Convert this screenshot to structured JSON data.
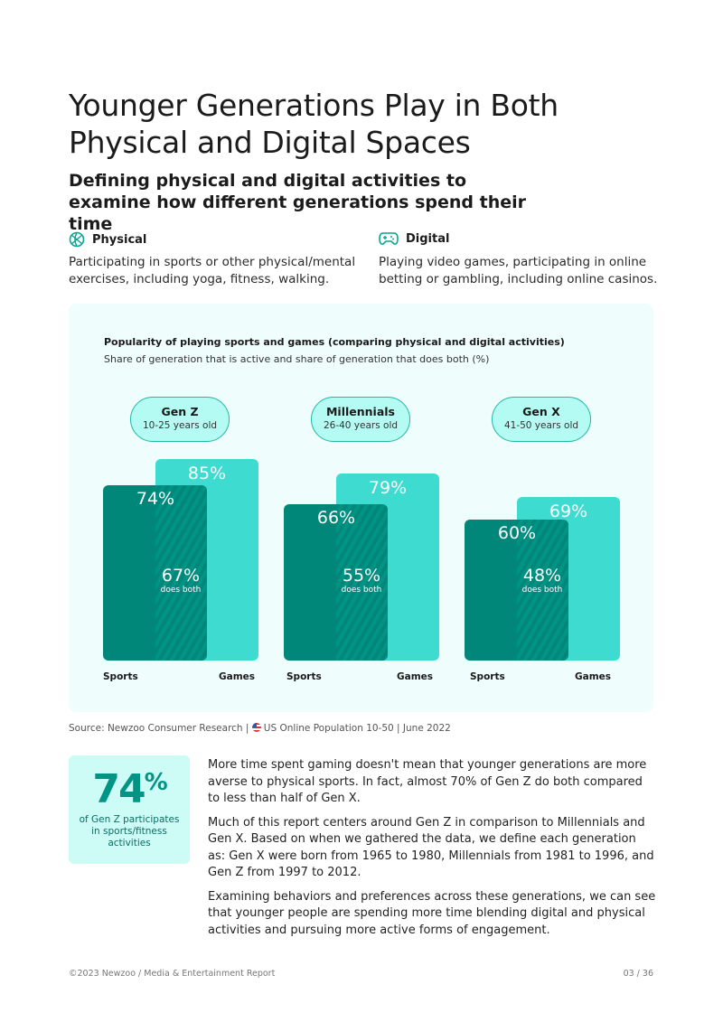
{
  "title": "Younger Generations Play in Both Physical and Digital Spaces",
  "subtitle": "Defining physical and digital activities to examine how different generations spend their time",
  "categories": [
    {
      "label": "Physical",
      "icon": "basketball-icon",
      "desc": "Participating in sports or other physical/mental exercises, including yoga, fitness, walking."
    },
    {
      "label": "Digital",
      "icon": "gamepad-icon",
      "desc": "Playing video games, participating in online betting or gambling, including online casinos."
    }
  ],
  "chart_data": {
    "type": "bar",
    "title": "Popularity of playing sports and games (comparing physical and digital activities)",
    "subtitle": "Share of generation that is active and share of generation that does both (%)",
    "categories": [
      "Gen Z",
      "Millennials",
      "Gen X"
    ],
    "age_ranges": [
      "10-25 years old",
      "26-40 years old",
      "41-50 years old"
    ],
    "series": [
      {
        "name": "Sports",
        "values": [
          74,
          66,
          60
        ],
        "color": "#00877a"
      },
      {
        "name": "Games",
        "values": [
          85,
          79,
          69
        ],
        "color": "#3ddbd0"
      },
      {
        "name": "does both",
        "values": [
          67,
          55,
          48
        ]
      }
    ],
    "both_label": "does both",
    "xlabels": [
      "Sports",
      "Games"
    ]
  },
  "source": "Source: Newzoo Consumer Research | ",
  "source_pop": "US Online Population 10-50 | June 2022",
  "stat": {
    "value": "74",
    "unit": "%",
    "label": "of Gen Z participates in sports/fitness activities"
  },
  "paragraphs": [
    "More time spent gaming doesn't mean that younger generations are more averse to physical sports. In fact, almost 70% of Gen Z do both compared to less than half of Gen X.",
    "Much of this report centers around Gen Z in comparison to Millennials and Gen X. Based on when we gathered the data, we define each generation as: Gen X were born from 1965 to 1980, Millennials from 1981 to 1996, and Gen Z from 1997 to 2012.",
    "Examining behaviors and preferences across these generations, we can see that younger people are spending more time blending digital and physical activities and pursuing more active forms of engagement."
  ],
  "footer": {
    "left": "©2023 Newzoo / Media & Entertainment Report",
    "right": "03 / 36"
  }
}
